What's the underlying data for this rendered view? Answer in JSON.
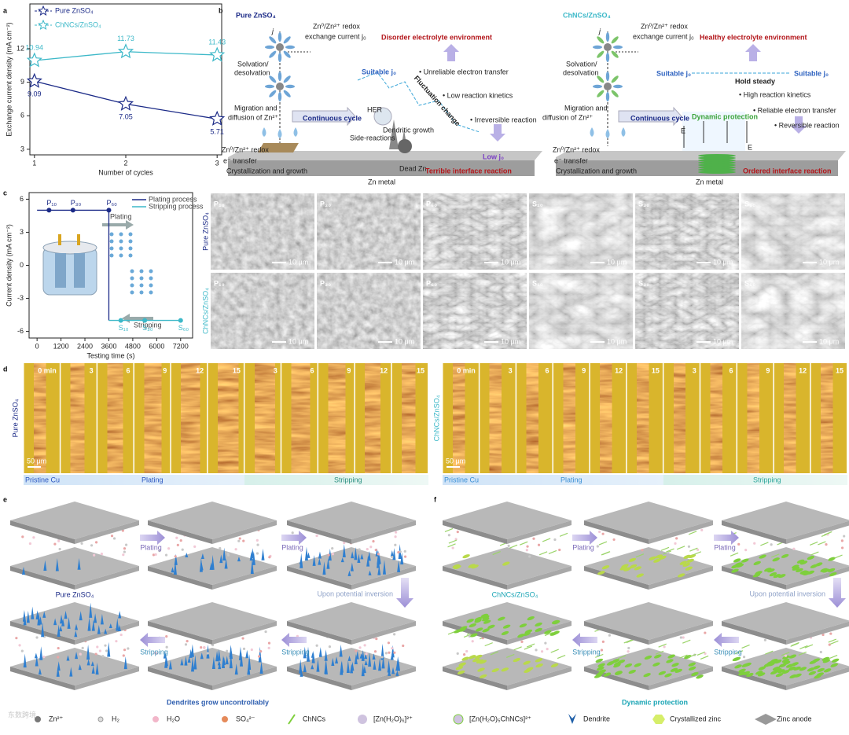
{
  "panel_labels": [
    "a",
    "b",
    "c",
    "d",
    "e",
    "f"
  ],
  "chart_data": [
    {
      "type": "line",
      "xlabel": "Number of cycles",
      "ylabel": "Exchange current density (mA cm⁻²)",
      "x": [
        1,
        2,
        3
      ],
      "xlim": [
        0.95,
        3.05
      ],
      "xticks": [
        1,
        2,
        3
      ],
      "ylim": [
        2.5,
        16
      ],
      "yticks": [
        3,
        6,
        9,
        12
      ],
      "legend": "upper left",
      "series": [
        {
          "name": "Pure ZnSO₄",
          "color": "#1b2a87",
          "values": [
            9.09,
            7.05,
            5.71
          ]
        },
        {
          "name": "ChNCs/ZnSO₄",
          "color": "#3cb8c8",
          "values": [
            10.94,
            11.73,
            11.43
          ]
        }
      ]
    },
    {
      "type": "line",
      "xlabel": "Testing time (s)",
      "ylabel": "Current density (mA cm⁻²)",
      "xlim": [
        -400,
        7800
      ],
      "xticks": [
        0,
        1200,
        2400,
        3600,
        4800,
        6000,
        7200
      ],
      "ylim": [
        -6.6,
        6.6
      ],
      "yticks": [
        -6,
        -3,
        0,
        3,
        6
      ],
      "legend": "upper right",
      "series": [
        {
          "name": "Plating process",
          "color": "#1b2a87",
          "x": [
            0,
            600,
            1800,
            3600,
            3600
          ],
          "values": [
            5,
            5,
            5,
            5,
            -5
          ],
          "point_labels": [
            null,
            "P₁₀",
            "P₃₀",
            "P₆₀",
            null
          ]
        },
        {
          "name": "Stripping process",
          "color": "#3cb8c8",
          "x": [
            3600,
            4200,
            5400,
            7200
          ],
          "values": [
            -5,
            -5,
            -5,
            -5
          ],
          "point_labels": [
            null,
            "S₁₀",
            "S₃₀",
            "S₆₀"
          ]
        }
      ],
      "annotations": [
        "Plating",
        "Stripping"
      ]
    }
  ],
  "b": {
    "left": [
      "Pure ZnSO₄",
      "j",
      "Zn⁰/Zn²⁺ redox",
      "exchange current j₀",
      "Disorder electrolyte environment",
      "Solvation/",
      "desolvation",
      "Suitable j₀",
      "• Unreliable electron transfer",
      "Fluctuation change",
      "• Low reaction kinetics",
      "Migration and",
      "diffusion of Zn²⁺",
      "Continuous cycle",
      "HER",
      "Dendritic growth",
      "• Irreversible reaction",
      "Side-reactions",
      "Zn⁰/Zn²⁺ redox",
      "e⁻ transfer",
      "Crystallization and growth",
      "Dead Zn",
      "Low j₀",
      "Terrible interface reaction",
      "Zn metal"
    ],
    "right": [
      "ChNCs/ZnSO₄",
      "j",
      "Zn⁰/Zn²⁺ redox",
      "exchange current j₀",
      "Healthy electrolyte environment",
      "Solvation/",
      "desolvation",
      "Suitable j₀",
      "Hold steady",
      "Suitable j₀",
      "• High reaction kinetics",
      "Migration and",
      "diffusion of Zn²⁺",
      "• Reliable electron transfer",
      "Continuous cycle",
      "Dynamic protection",
      "E",
      "E",
      "• Reversible reaction",
      "Zn⁰/Zn²⁺ redox",
      "e⁻ transfer",
      "Crystallization and growth",
      "Zn metal",
      "Ordered interface reaction"
    ]
  },
  "sem": {
    "rows": [
      {
        "label": "Pure ZnSO₄",
        "tiles": [
          {
            "label": "P₁₀",
            "scale": "10 μm"
          },
          {
            "label": "P₃₀",
            "scale": "10 μm"
          },
          {
            "label": "P₆₀",
            "scale": "10 μm"
          },
          {
            "label": "S₁₀",
            "scale": "10 μm"
          },
          {
            "label": "S₃₀",
            "scale": "10 μm"
          },
          {
            "label": "S₆₀",
            "scale": "10 μm"
          }
        ]
      },
      {
        "label": "ChNCs/ZnSO₄",
        "tiles": [
          {
            "label": "P₁₀",
            "scale": "10 μm"
          },
          {
            "label": "P₃₀",
            "scale": "10 μm"
          },
          {
            "label": "P₆₀",
            "scale": "10 μm"
          },
          {
            "label": "S₁₀",
            "scale": "10 μm"
          },
          {
            "label": "S₃₀",
            "scale": "10 μm"
          },
          {
            "label": "S₆₀",
            "scale": "10 μm"
          }
        ]
      }
    ]
  },
  "d": {
    "groups": [
      {
        "label": "Pure ZnSO₄",
        "frames": [
          "0 min",
          "3",
          "6",
          "9",
          "12",
          "15",
          "3",
          "6",
          "9",
          "12",
          "15"
        ],
        "scale": "50 μm",
        "stages": [
          "Pristine Cu",
          "Plating",
          "Stripping"
        ]
      },
      {
        "label": "ChNCs/ZnSO₄",
        "frames": [
          "0 min",
          "3",
          "6",
          "9",
          "12",
          "15",
          "3",
          "6",
          "9",
          "12",
          "15"
        ],
        "scale": "50 μm",
        "stages": [
          "Pristine Cu",
          "Plating",
          "Stripping"
        ]
      }
    ]
  },
  "e": {
    "title": "Pure ZnSO₄",
    "caption": "Dendrites grow uncontrollably",
    "arrows": [
      "Plating",
      "Plating",
      "Upon potential inversion",
      "Stripping",
      "Stripping"
    ]
  },
  "f": {
    "title": "ChNCs/ZnSO₄",
    "caption": "Dynamic protection",
    "arrows": [
      "Plating",
      "Plating",
      "Upon potential inversion",
      "Stripping",
      "Stripping"
    ]
  },
  "legend": [
    "Zn²⁺",
    "H₂",
    "H₂O",
    "SO₄²⁻",
    "ChNCs",
    "[Zn(H₂O)₆]²⁺",
    "[Zn(H₂O)₅ChNCs]²⁺",
    "Dendrite",
    "Crystallized zinc",
    "Zinc anode"
  ],
  "watermark": "东数跨境"
}
